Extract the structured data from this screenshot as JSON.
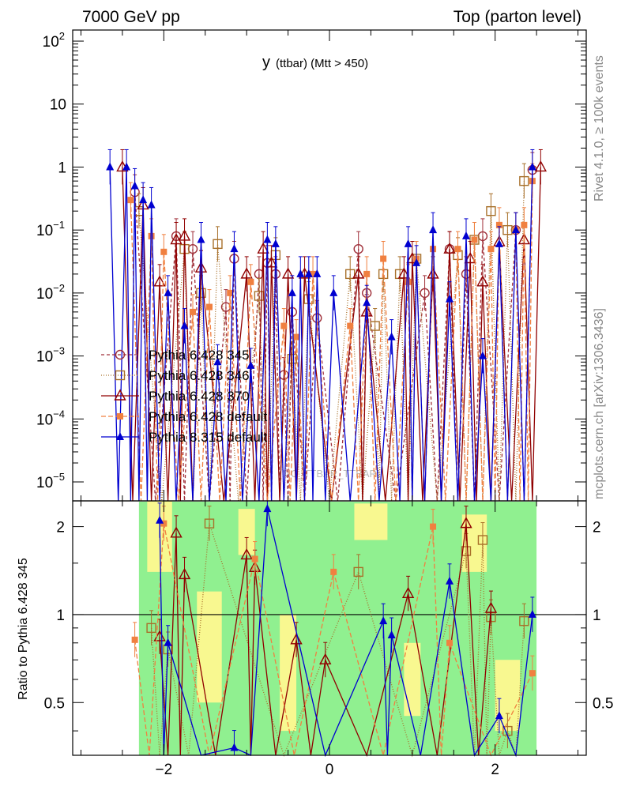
{
  "header": {
    "left": "7000 GeV pp",
    "right": "Top (parton level)"
  },
  "side_text": {
    "rivet": "Rivet 4.1.0, ≥ 100k events",
    "mcplots": "mcplots.cern.ch [arXiv:1306.3436]"
  },
  "watermark": "(MC_TTBAR_TTBAR)",
  "colors": {
    "p345": "#a0303a",
    "p346": "#a8702a",
    "p370": "#900000",
    "pdef": "#f08040",
    "p8": "#0000d0",
    "band_green": "#90f090",
    "band_yellow": "#f8f890"
  },
  "chart_data": [
    {
      "type": "line",
      "title_main": "y",
      "title_sub": "(ttbar) (Mtt > 450)",
      "xlim": [
        -3.1,
        3.1
      ],
      "ylim": [
        5e-06,
        150
      ],
      "log_y": true,
      "ytick_labels": [
        {
          "value": 100,
          "base": "10",
          "exp": "2"
        },
        {
          "value": 10,
          "base": "10",
          "exp": ""
        },
        {
          "value": 1,
          "base": "1",
          "exp": ""
        },
        {
          "value": 0.1,
          "base": "10",
          "exp": "−1"
        },
        {
          "value": 0.01,
          "base": "10",
          "exp": "−2"
        },
        {
          "value": 0.001,
          "base": "10",
          "exp": "−3"
        },
        {
          "value": 0.0001,
          "base": "10",
          "exp": "−4"
        },
        {
          "value": 1e-05,
          "base": "10",
          "exp": "−5"
        }
      ],
      "legend": [
        "Pythia 6.428 345",
        "Pythia 6.428 346",
        "Pythia 6.428 370",
        "Pythia 6.428 default",
        "Pythia 8.315 default"
      ],
      "legend_position": "center-left",
      "series": [
        {
          "name": "Pythia 6.428 345",
          "marker": "open-circle",
          "x": [
            -2.35,
            -1.85,
            -1.65,
            -1.25,
            -1.15,
            -0.85,
            -0.75,
            -0.65,
            -0.55,
            -0.45,
            -0.15,
            0.35,
            0.45,
            1.15,
            1.45,
            1.65,
            1.85,
            2.25,
            2.45
          ],
          "y": [
            0.4,
            0.08,
            0.05,
            0.006,
            0.035,
            0.02,
            0.03,
            0.02,
            0.0005,
            0.005,
            0.004,
            0.05,
            0.01,
            0.01,
            0.05,
            0.02,
            0.08,
            0.1,
            0.9
          ]
        },
        {
          "name": "Pythia 6.428 346",
          "marker": "open-square",
          "x": [
            -2.3,
            -1.75,
            -1.55,
            -1.35,
            -0.85,
            -0.65,
            -0.45,
            -0.25,
            0.25,
            0.55,
            0.65,
            0.85,
            1.05,
            1.55,
            1.75,
            1.95,
            2.15,
            2.35
          ],
          "y": [
            0.2,
            0.05,
            0.01,
            0.06,
            0.009,
            0.04,
            0.0009,
            0.008,
            0.02,
            0.003,
            0.02,
            0.02,
            0.035,
            0.04,
            0.07,
            0.2,
            0.1,
            0.6
          ]
        },
        {
          "name": "Pythia 6.428 370",
          "marker": "open-triangle",
          "x": [
            -2.5,
            -2.25,
            -2.05,
            -1.85,
            -1.75,
            -1.55,
            -1.0,
            -0.8,
            -0.7,
            -0.5,
            -0.3,
            0.35,
            0.45,
            0.9,
            1.0,
            1.25,
            1.45,
            1.7,
            1.85,
            2.05,
            2.35,
            2.55
          ],
          "y": [
            1.0,
            0.25,
            0.015,
            0.07,
            0.08,
            0.025,
            0.02,
            0.05,
            0.03,
            0.02,
            0.02,
            0.02,
            0.005,
            0.02,
            0.035,
            0.02,
            0.05,
            0.035,
            0.015,
            0.065,
            0.07,
            1.0
          ]
        },
        {
          "name": "Pythia 6.428 default",
          "marker": "filled-square",
          "x": [
            -2.4,
            -2.15,
            -2.0,
            -1.65,
            -1.45,
            -1.2,
            -0.95,
            -0.55,
            -0.4,
            -0.2,
            0.25,
            0.45,
            0.65,
            0.95,
            1.05,
            1.25,
            1.55,
            1.75,
            1.95,
            2.05,
            2.25,
            2.35,
            2.45
          ],
          "y": [
            0.3,
            0.08,
            0.045,
            0.005,
            0.006,
            0.01,
            0.015,
            0.003,
            0.002,
            0.02,
            0.003,
            0.02,
            0.035,
            0.015,
            0.035,
            0.05,
            0.05,
            0.07,
            0.05,
            0.12,
            0.1,
            0.12,
            0.6
          ]
        },
        {
          "name": "Pythia 8.315 default",
          "marker": "filled-triangle",
          "x": [
            -2.65,
            -2.45,
            -2.35,
            -2.25,
            -2.15,
            -1.95,
            -1.75,
            -1.55,
            -1.35,
            -1.15,
            -0.95,
            -0.75,
            -0.65,
            -0.45,
            -0.35,
            -0.25,
            -0.15,
            0.05,
            0.45,
            0.75,
            0.95,
            1.05,
            1.25,
            1.45,
            1.65,
            1.85,
            2.05,
            2.25,
            2.45
          ],
          "y": [
            1.0,
            1.0,
            0.5,
            0.3,
            0.25,
            0.01,
            0.003,
            0.07,
            0.0008,
            0.05,
            0.0007,
            0.07,
            0.06,
            0.01,
            0.02,
            0.02,
            0.02,
            0.01,
            0.007,
            0.002,
            0.06,
            0.03,
            0.1,
            0.008,
            0.08,
            0.001,
            0.06,
            0.1,
            1.0
          ]
        }
      ]
    },
    {
      "type": "line",
      "ylabel": "Ratio to Pythia 6.428 345",
      "xlim": [
        -3.1,
        3.1
      ],
      "ylim": [
        0.33,
        2.45
      ],
      "log_y": true,
      "yticks": [
        0.5,
        1,
        2
      ],
      "ytick_labels": [
        "0.5",
        "1",
        "2"
      ],
      "xticks": [
        -2,
        0,
        2
      ],
      "xtick_labels": [
        "−2",
        "0",
        "2"
      ],
      "reference_line": 1,
      "band_green": {
        "x0": -2.3,
        "x1": 2.5
      },
      "band_yellow_bins": [
        {
          "x0": -2.2,
          "x1": -1.9,
          "lo": 1.4,
          "hi": 2.45
        },
        {
          "x0": -1.6,
          "x1": -1.3,
          "lo": 0.5,
          "hi": 1.2
        },
        {
          "x0": -1.1,
          "x1": -0.9,
          "lo": 1.6,
          "hi": 2.3
        },
        {
          "x0": -0.6,
          "x1": -0.4,
          "lo": 0.4,
          "hi": 1.0
        },
        {
          "x0": 0.3,
          "x1": 0.7,
          "lo": 1.8,
          "hi": 2.4
        },
        {
          "x0": 0.9,
          "x1": 1.1,
          "lo": 0.45,
          "hi": 0.8
        },
        {
          "x0": 1.6,
          "x1": 1.9,
          "lo": 1.4,
          "hi": 2.2
        },
        {
          "x0": 2.0,
          "x1": 2.3,
          "lo": 0.4,
          "hi": 0.7
        }
      ],
      "series": [
        {
          "name": "Pythia 6.428 346",
          "marker": "open-square",
          "x": [
            -2.15,
            -1.95,
            -1.45,
            0.35,
            1.65,
            1.85,
            1.95,
            2.15,
            2.35
          ],
          "y": [
            0.9,
            0.76,
            2.05,
            1.4,
            1.65,
            1.8,
            0.98,
            0.4,
            0.95
          ]
        },
        {
          "name": "Pythia 6.428 370",
          "marker": "open-triangle",
          "x": [
            -2.05,
            -1.85,
            -1.75,
            -1.0,
            -0.9,
            -0.4,
            -0.05,
            0.95,
            1.65,
            1.95
          ],
          "y": [
            0.84,
            1.9,
            1.37,
            1.6,
            1.45,
            0.82,
            0.7,
            1.18,
            2.05,
            1.05
          ]
        },
        {
          "name": "Pythia 6.428 default",
          "marker": "filled-square",
          "x": [
            -2.35,
            -2.0,
            -0.9,
            0.05,
            1.25,
            1.45,
            2.45
          ],
          "y": [
            0.82,
            2.05,
            1.55,
            1.4,
            2.0,
            0.8,
            0.63
          ]
        },
        {
          "name": "Pythia 8.315 default",
          "marker": "filled-triangle",
          "x": [
            -2.05,
            -1.95,
            -1.15,
            -0.75,
            0.65,
            0.75,
            1.45,
            2.05,
            2.45
          ],
          "y": [
            2.1,
            0.8,
            0.35,
            2.3,
            0.95,
            0.85,
            1.3,
            0.45,
            1.0
          ]
        }
      ]
    }
  ]
}
